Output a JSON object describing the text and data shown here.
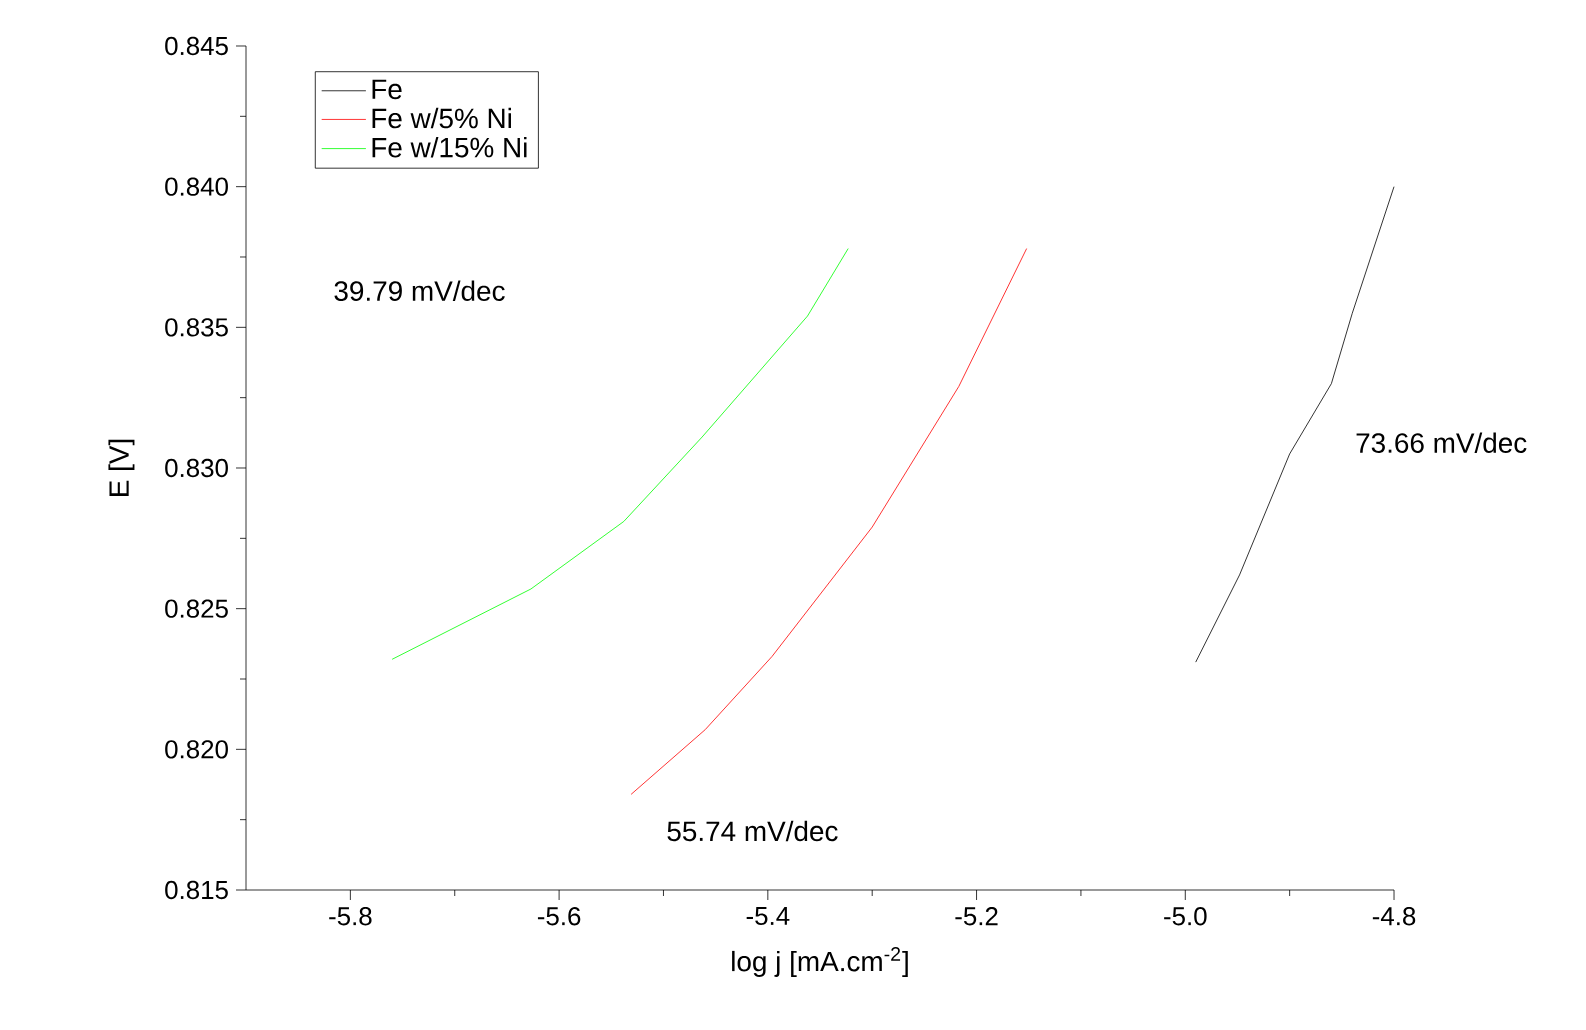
{
  "chart_data": {
    "type": "line",
    "xlabel": "log j [mA.cm$^{-2}$]",
    "ylabel": "E [V]",
    "xlim": [
      -5.9,
      -4.8
    ],
    "ylim": [
      0.815,
      0.845
    ],
    "xticks": [
      {
        "value": -5.8,
        "label": "-5.8"
      },
      {
        "value": -5.6,
        "label": "-5.6"
      },
      {
        "value": -5.4,
        "label": "-5.4"
      },
      {
        "value": -5.2,
        "label": "-5.2"
      },
      {
        "value": -5.0,
        "label": "-5.0"
      },
      {
        "value": -4.8,
        "label": "-4.8"
      }
    ],
    "yticks": [
      {
        "value": 0.815,
        "label": "0.815"
      },
      {
        "value": 0.82,
        "label": "0.820"
      },
      {
        "value": 0.825,
        "label": "0.825"
      },
      {
        "value": 0.83,
        "label": "0.830"
      },
      {
        "value": 0.835,
        "label": "0.835"
      },
      {
        "value": 0.84,
        "label": "0.840"
      },
      {
        "value": 0.845,
        "label": "0.845"
      }
    ],
    "legend": "top left",
    "grid": false,
    "marker": "none",
    "line_style": "solid",
    "series": [
      {
        "name": "Fe",
        "color": "#000000",
        "x": [
          -4.99,
          -4.948,
          -4.9,
          -4.86,
          -4.84,
          -4.8
        ],
        "values": [
          0.8231,
          0.8262,
          0.8305,
          0.833,
          0.8355,
          0.84
        ]
      },
      {
        "name": "Fe w/5% Ni",
        "color": "#ff0000",
        "x": [
          -5.531,
          -5.46,
          -5.396,
          -5.3,
          -5.217,
          -5.152
        ],
        "values": [
          0.8184,
          0.8207,
          0.8233,
          0.8279,
          0.8329,
          0.8378
        ]
      },
      {
        "name": "Fe w/15% Ni",
        "color": "#00ff00",
        "x": [
          -5.76,
          -5.627,
          -5.538,
          -5.463,
          -5.362,
          -5.323
        ],
        "values": [
          0.8232,
          0.8257,
          0.8281,
          0.8311,
          0.8354,
          0.8378
        ]
      }
    ],
    "annotations": [
      "39.79 mV/dec",
      "55.74 mV/dec",
      "73.66 mV/dec"
    ]
  }
}
